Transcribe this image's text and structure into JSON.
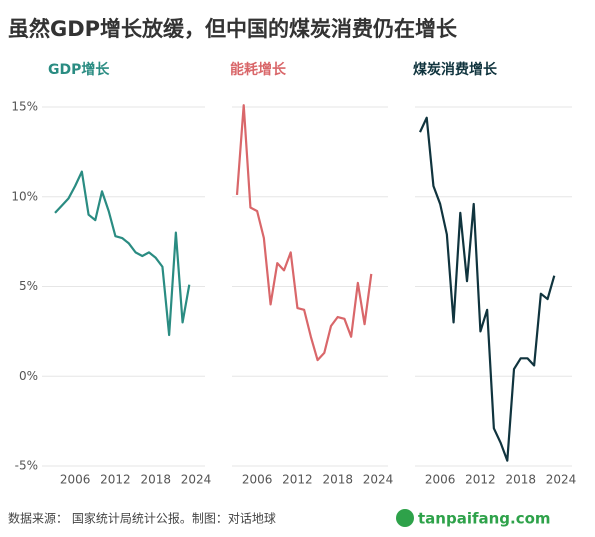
{
  "title": "虽然GDP增长放缓，但中国的煤炭消费仍在增长",
  "source": "数据来源： 国家统计局统计公报。制图：对话地球",
  "watermark": "tanpaifang.com",
  "chart_data": [
    {
      "type": "line",
      "title": "GDP增长",
      "color": "#2a8c82",
      "x": [
        2003,
        2004,
        2005,
        2006,
        2007,
        2008,
        2009,
        2010,
        2011,
        2012,
        2013,
        2014,
        2015,
        2016,
        2017,
        2018,
        2019,
        2020,
        2021,
        2022,
        2023
      ],
      "values": [
        9.1,
        9.5,
        9.9,
        10.6,
        11.4,
        9.0,
        8.7,
        10.3,
        9.2,
        7.8,
        7.7,
        7.4,
        6.9,
        6.7,
        6.9,
        6.6,
        6.1,
        2.3,
        8.0,
        3.0,
        5.1
      ],
      "xlim": [
        2003,
        2024
      ],
      "xticks": [
        2006,
        2012,
        2018,
        2024
      ],
      "ylim": [
        -5,
        15
      ],
      "yticks": [
        {
          "value": 15,
          "label": "15%"
        },
        {
          "value": 10,
          "label": "10%"
        },
        {
          "value": 5,
          "label": "5%"
        },
        {
          "value": 0,
          "label": "0%"
        },
        {
          "value": -5,
          "label": "-5%"
        }
      ],
      "grid": true
    },
    {
      "type": "line",
      "title": "能耗增长",
      "color": "#d9676a",
      "x": [
        2003,
        2004,
        2005,
        2006,
        2007,
        2008,
        2009,
        2010,
        2011,
        2012,
        2013,
        2014,
        2015,
        2016,
        2017,
        2018,
        2019,
        2020,
        2021,
        2022,
        2023
      ],
      "values": [
        10.1,
        15.1,
        9.4,
        9.2,
        7.7,
        4.0,
        6.3,
        5.9,
        6.9,
        3.8,
        3.7,
        2.2,
        0.9,
        1.3,
        2.8,
        3.3,
        3.2,
        2.2,
        5.2,
        2.9,
        5.7
      ],
      "xlim": [
        2003,
        2024
      ],
      "xticks": [
        2006,
        2012,
        2018,
        2024
      ],
      "ylim": [
        -5,
        15
      ]
    },
    {
      "type": "line",
      "title": "煤炭消费增长",
      "color": "#10343e",
      "x": [
        2003,
        2004,
        2005,
        2006,
        2007,
        2008,
        2009,
        2010,
        2011,
        2012,
        2013,
        2014,
        2015,
        2016,
        2017,
        2018,
        2019,
        2020,
        2021,
        2022,
        2023
      ],
      "values": [
        13.6,
        14.4,
        10.6,
        9.6,
        7.9,
        3.0,
        9.1,
        5.3,
        9.6,
        2.5,
        3.7,
        -2.9,
        -3.7,
        -4.7,
        0.4,
        1.0,
        1.0,
        0.6,
        4.6,
        4.3,
        5.6
      ],
      "xlim": [
        2003,
        2024
      ],
      "xticks": [
        2006,
        2012,
        2018,
        2024
      ],
      "ylim": [
        -5,
        15
      ]
    }
  ]
}
